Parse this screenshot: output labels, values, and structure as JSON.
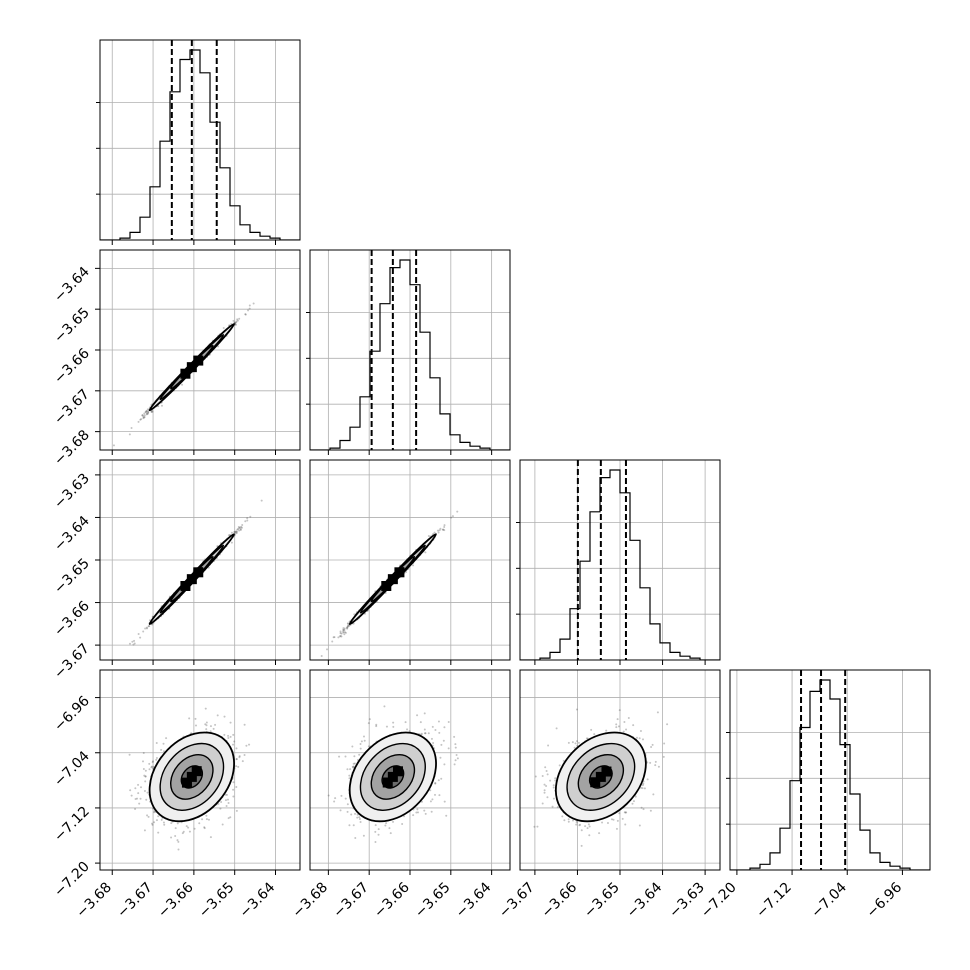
{
  "chart_data": {
    "type": "corner",
    "axes": [
      {
        "range": [
          -3.683,
          -3.634
        ],
        "ticks": [
          "−3.68",
          "−3.67",
          "−3.66",
          "−3.65",
          "−3.64"
        ],
        "quantiles": [
          -3.6654,
          -3.6605,
          -3.6544
        ],
        "peak": -3.6605,
        "sigma": 0.0045
      },
      {
        "range": [
          -3.6845,
          -3.6355
        ],
        "ticks": [
          "−3.68",
          "−3.67",
          "−3.66",
          "−3.65",
          "−3.64"
        ],
        "quantiles": [
          -3.6694,
          -3.6642,
          -3.6585
        ],
        "peak": -3.6642,
        "sigma": 0.0046
      },
      {
        "range": [
          -3.6735,
          -3.6265
        ],
        "ticks": [
          "−3.67",
          "−3.66",
          "−3.65",
          "−3.64",
          "−3.63"
        ],
        "quantiles": [
          -3.6599,
          -3.6545,
          -3.6486
        ],
        "peak": -3.6545,
        "sigma": 0.0046
      },
      {
        "range": [
          -7.21,
          -6.92
        ],
        "ticks": [
          "−7.20",
          "−7.12",
          "−7.04",
          "−6.96"
        ],
        "quantiles": [
          -7.107,
          -7.078,
          -7.043
        ],
        "peak": -7.075,
        "sigma": 0.028
      }
    ],
    "histograms": [
      [
        0,
        0,
        0.01,
        0.04,
        0.12,
        0.28,
        0.52,
        0.78,
        0.95,
        1.0,
        0.88,
        0.62,
        0.38,
        0.18,
        0.08,
        0.04,
        0.02,
        0.01,
        0,
        0
      ],
      [
        0,
        0,
        0.01,
        0.05,
        0.12,
        0.28,
        0.52,
        0.77,
        0.96,
        1.0,
        0.87,
        0.62,
        0.38,
        0.19,
        0.08,
        0.04,
        0.02,
        0.01,
        0,
        0
      ],
      [
        0,
        0,
        0.01,
        0.04,
        0.11,
        0.27,
        0.52,
        0.78,
        0.96,
        1.0,
        0.88,
        0.63,
        0.38,
        0.19,
        0.09,
        0.04,
        0.02,
        0.01,
        0,
        0
      ],
      [
        0,
        0,
        0.01,
        0.03,
        0.09,
        0.22,
        0.47,
        0.75,
        0.94,
        1.0,
        0.9,
        0.66,
        0.4,
        0.21,
        0.09,
        0.04,
        0.02,
        0.01,
        0,
        0
      ]
    ],
    "correlations": [
      [
        1,
        0.995,
        0.995,
        0.3
      ],
      [
        0.995,
        1,
        0.995,
        0.3
      ],
      [
        0.995,
        0.995,
        1,
        0.3
      ],
      [
        0.3,
        0.3,
        0.3,
        1
      ]
    ],
    "contour_levels": [
      "0.5σ",
      "1σ",
      "1.5σ",
      "2σ"
    ],
    "grid": true
  }
}
